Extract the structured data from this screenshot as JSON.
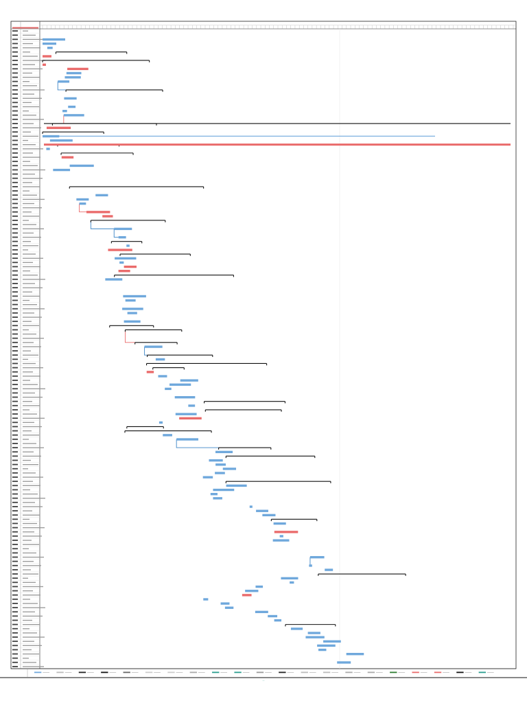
{
  "document": {
    "kind": "gantt-chart-printout",
    "page_footer_mark": "—"
  },
  "legend_swatches": [
    "task",
    "split",
    "milestone",
    "summary",
    "project-summary",
    "inactive-task",
    "inactive-milestone",
    "inactive-summary",
    "manual-task",
    "duration-only",
    "manual-summary-rollup",
    "manual-summary",
    "start-only",
    "finish-only",
    "external-tasks",
    "external-milestone",
    "deadline",
    "critical",
    "critical-split",
    "progress",
    "manual-progress"
  ],
  "colors": {
    "task_bar": "#6fa8dc",
    "task_bar_dark": "#3d85c6",
    "critical_bar": "#ea6b6b",
    "summary_bar": "#111111",
    "gridline": "#d9d9d9",
    "milestone_header_red": "#e06666",
    "legend_teal": "#2a9d8f"
  },
  "chart_data": {
    "type": "gantt",
    "title": "",
    "rows_visible": 152,
    "timeline_columns_visible": 110,
    "critical_path_rows": [
      6,
      7,
      8,
      9,
      22,
      23,
      29,
      30,
      36,
      37,
      38,
      43,
      44,
      45,
      52,
      56,
      57,
      70,
      71,
      73,
      74,
      79,
      80,
      81,
      92,
      94,
      95,
      101,
      119,
      134
    ],
    "summary_rows": [
      5,
      7,
      14,
      22,
      24,
      27,
      29,
      37,
      45,
      50,
      53,
      58,
      70,
      71,
      74,
      77,
      79,
      80,
      88,
      90,
      94,
      95,
      99,
      101,
      107,
      116,
      129,
      141
    ]
  }
}
